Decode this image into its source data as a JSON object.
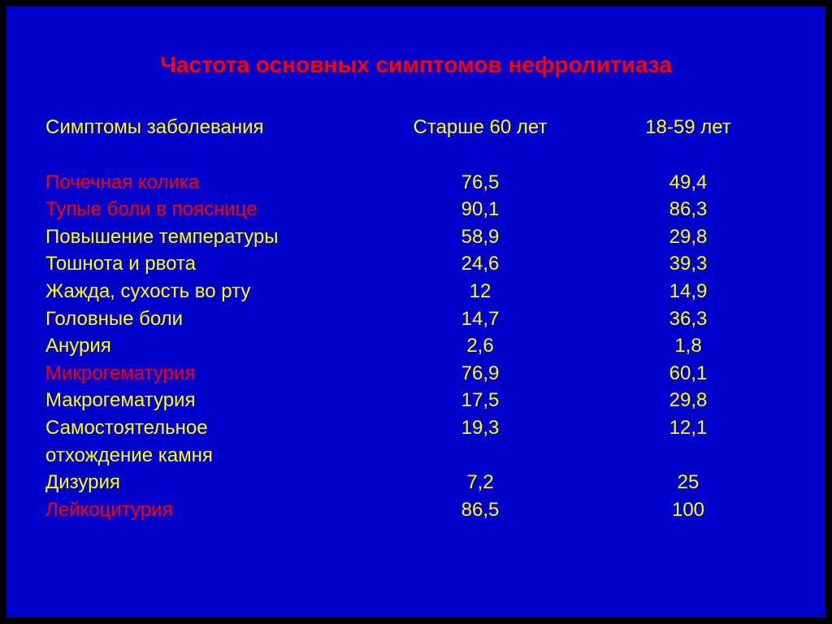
{
  "colors": {
    "background": "#0000cc",
    "outer": "#000000",
    "title": "#ff0000",
    "header": "#ffff00",
    "normal": "#ffff00",
    "highlight": "#ff0000"
  },
  "fonts": {
    "title_size": 28,
    "body_size": 24,
    "family": "Arial"
  },
  "title": "Частота основных симптомов нефролитиаза",
  "columns": {
    "label": "Симптомы заболевания",
    "col1": "Старше 60 лет",
    "col2": "18-59 лет"
  },
  "rows": [
    {
      "label": "Почечная колика",
      "label2": "",
      "v1": "76,5",
      "v2": "49,4",
      "hl": true
    },
    {
      "label": "Тупые боли в пояснице",
      "label2": "",
      "v1": "90,1",
      "v2": "86,3",
      "hl": true
    },
    {
      "label": "Повышение температуры",
      "label2": "",
      "v1": "58,9",
      "v2": "29,8",
      "hl": false
    },
    {
      "label": "Тошнота и рвота",
      "label2": "",
      "v1": "24,6",
      "v2": "39,3",
      "hl": false
    },
    {
      "label": "Жажда, сухость во рту",
      "label2": "",
      "v1": "12",
      "v2": "14,9",
      "hl": false
    },
    {
      "label": "Головные боли",
      "label2": "",
      "v1": "14,7",
      "v2": "36,3",
      "hl": false
    },
    {
      "label": "Анурия",
      "label2": "",
      "v1": "2,6",
      "v2": "1,8",
      "hl": false
    },
    {
      "label": "Микрогематурия",
      "label2": "",
      "v1": "76,9",
      "v2": "60,1",
      "hl": true
    },
    {
      "label": "Макрогематурия",
      "label2": "",
      "v1": "17,5",
      "v2": "29,8",
      "hl": false
    },
    {
      "label": "Самостоятельное",
      "label2": "отхождение камня",
      "v1": "19,3",
      "v2": "12,1",
      "hl": false
    },
    {
      "label": "Дизурия",
      "label2": "",
      "v1": "7,2",
      "v2": "25",
      "hl": false
    },
    {
      "label": "Лейкоцитурия",
      "label2": "",
      "v1": "86,5",
      "v2": "100",
      "hl": true
    }
  ]
}
